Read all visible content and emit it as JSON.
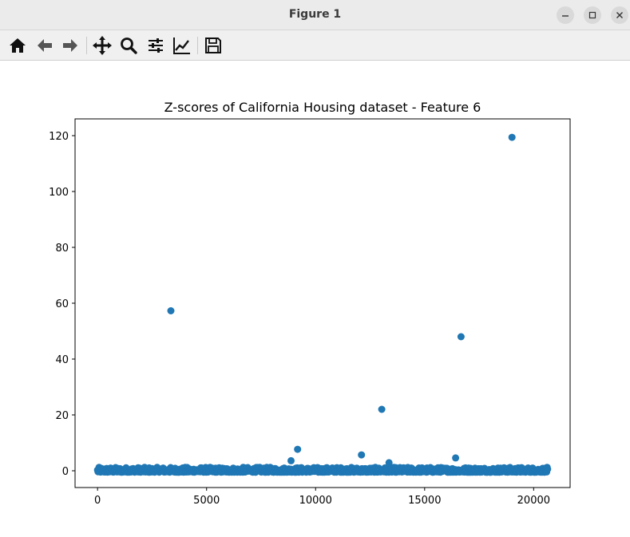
{
  "window": {
    "title": "Figure 1"
  },
  "toolbar": {
    "buttons": [
      {
        "name": "home-icon"
      },
      {
        "name": "back-arrow-icon"
      },
      {
        "name": "forward-arrow-icon"
      },
      {
        "name": "pan-icon"
      },
      {
        "name": "zoom-icon"
      },
      {
        "name": "configure-subplots-icon"
      },
      {
        "name": "edit-axis-icon"
      },
      {
        "name": "save-icon"
      }
    ]
  },
  "colors": {
    "marker": "#1f77b4",
    "axes": "#000000"
  },
  "chart_data": {
    "type": "scatter",
    "title": "Z-scores of California Housing dataset - Feature 6",
    "xlabel": "",
    "ylabel": "",
    "xlim": [
      -1032,
      21672
    ],
    "ylim": [
      -6,
      126
    ],
    "xticks": [
      0,
      5000,
      10000,
      15000,
      20000
    ],
    "yticks": [
      0,
      20,
      40,
      60,
      80,
      100,
      120
    ],
    "grid": false,
    "outliers": [
      {
        "x": 19006,
        "y": 119.4
      },
      {
        "x": 3364,
        "y": 57.3
      },
      {
        "x": 16669,
        "y": 48.0
      },
      {
        "x": 13034,
        "y": 22.0
      },
      {
        "x": 9172,
        "y": 7.7
      },
      {
        "x": 12104,
        "y": 5.7
      },
      {
        "x": 16420,
        "y": 4.6
      },
      {
        "x": 8874,
        "y": 3.6
      },
      {
        "x": 13366,
        "y": 2.9
      }
    ],
    "bulk": {
      "x_range": [
        0,
        20640
      ],
      "y_range": [
        -0.5,
        2.0
      ],
      "count": 20640
    }
  }
}
